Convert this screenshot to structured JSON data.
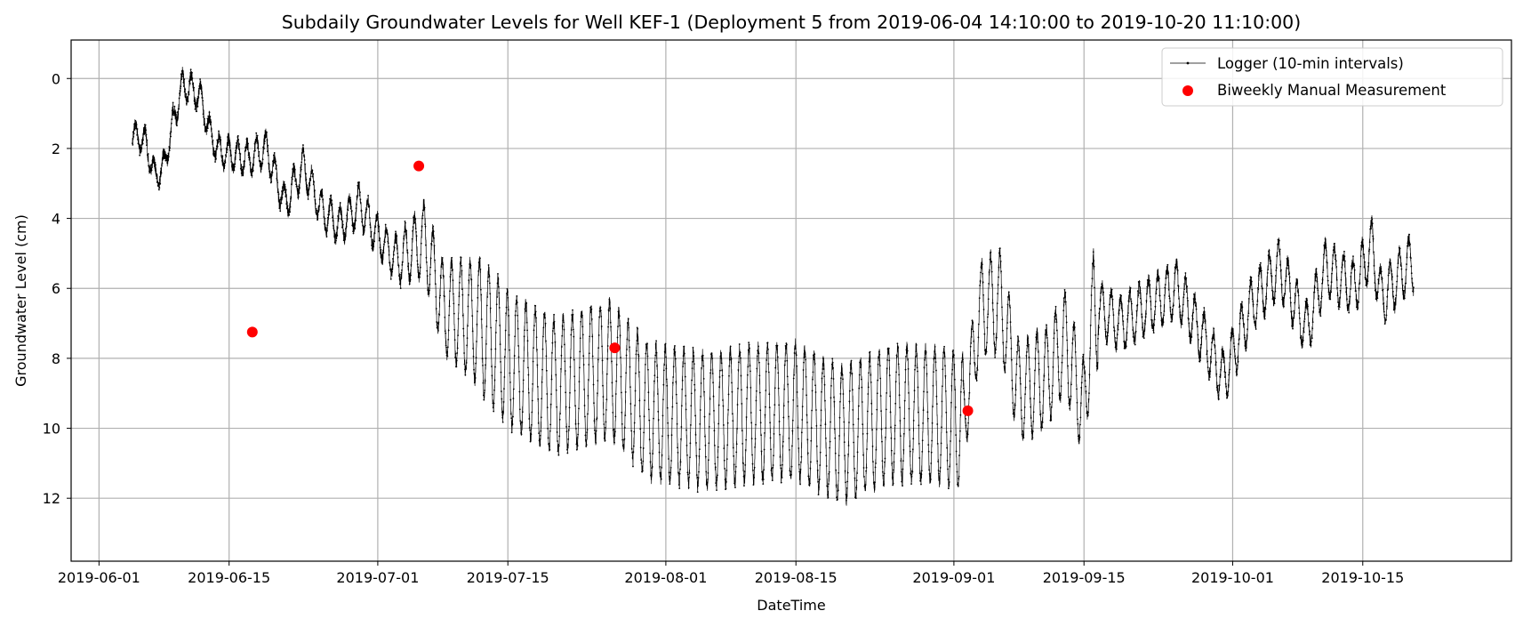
{
  "chart_data": {
    "type": "line",
    "title": "Subdaily Groundwater Levels for Well KEF-1 (Deployment 5 from 2019-06-04 14:10:00 to 2019-10-20 11:10:00)",
    "xlabel": "DateTime",
    "ylabel": "Groundwater Level (cm)",
    "x_ticks": [
      "2019-06-01",
      "2019-06-15",
      "2019-07-01",
      "2019-07-15",
      "2019-08-01",
      "2019-08-15",
      "2019-09-01",
      "2019-09-15",
      "2019-10-01",
      "2019-10-15"
    ],
    "y_ticks": [
      0,
      2,
      4,
      6,
      8,
      10,
      12
    ],
    "xlim": [
      "2019-05-29",
      "2019-10-31"
    ],
    "ylim": [
      13.8,
      -1.1
    ],
    "y_inverted": true,
    "grid": true,
    "legend_position": "top-right",
    "series": [
      {
        "name": "Logger (10-min intervals)",
        "style": "line-with-small-markers",
        "color": "#000000",
        "interval_minutes": 10,
        "start": "2019-06-04 14:10:00",
        "end": "2019-10-20 11:10:00",
        "trend": [
          [
            "2019-06-04",
            1.5
          ],
          [
            "2019-06-06",
            1.8
          ],
          [
            "2019-06-07",
            2.8
          ],
          [
            "2019-06-08",
            2.5
          ],
          [
            "2019-06-09",
            1.2
          ],
          [
            "2019-06-10",
            0.2
          ],
          [
            "2019-06-11",
            0.3
          ],
          [
            "2019-06-12",
            0.6
          ],
          [
            "2019-06-13",
            1.6
          ],
          [
            "2019-06-14",
            2.1
          ],
          [
            "2019-06-17",
            2.3
          ],
          [
            "2019-06-19",
            2.0
          ],
          [
            "2019-06-21",
            3.6
          ],
          [
            "2019-06-23",
            2.5
          ],
          [
            "2019-06-25",
            3.8
          ],
          [
            "2019-06-27",
            4.2
          ],
          [
            "2019-06-29",
            3.6
          ],
          [
            "2019-07-01",
            4.5
          ],
          [
            "2019-07-03",
            5.2
          ],
          [
            "2019-07-06",
            4.6
          ],
          [
            "2019-07-08",
            6.5
          ],
          [
            "2019-07-12",
            7.0
          ],
          [
            "2019-07-15",
            8.0
          ],
          [
            "2019-07-20",
            8.8
          ],
          [
            "2019-07-26",
            8.3
          ],
          [
            "2019-07-30",
            9.5
          ],
          [
            "2019-08-05",
            9.8
          ],
          [
            "2019-08-10",
            9.6
          ],
          [
            "2019-08-15",
            9.5
          ],
          [
            "2019-08-20",
            10.2
          ],
          [
            "2019-08-25",
            9.6
          ],
          [
            "2019-08-30",
            9.6
          ],
          [
            "2019-09-02",
            9.8
          ],
          [
            "2019-09-04",
            6.5
          ],
          [
            "2019-09-06",
            6.4
          ],
          [
            "2019-09-08",
            9.0
          ],
          [
            "2019-09-11",
            8.5
          ],
          [
            "2019-09-13",
            7.5
          ],
          [
            "2019-09-15",
            9.5
          ],
          [
            "2019-09-16",
            6.5
          ],
          [
            "2019-09-19",
            7.0
          ],
          [
            "2019-09-22",
            6.5
          ],
          [
            "2019-09-25",
            6.0
          ],
          [
            "2019-09-28",
            7.5
          ],
          [
            "2019-09-30",
            8.6
          ],
          [
            "2019-10-03",
            6.5
          ],
          [
            "2019-10-06",
            5.4
          ],
          [
            "2019-10-09",
            7.2
          ],
          [
            "2019-10-11",
            5.4
          ],
          [
            "2019-10-14",
            6.0
          ],
          [
            "2019-10-16",
            4.8
          ],
          [
            "2019-10-17",
            6.3
          ],
          [
            "2019-10-20",
            5.3
          ]
        ]
      },
      {
        "name": "Biweekly Manual Measurement",
        "style": "scatter",
        "color": "#ff0000",
        "points": [
          [
            "2019-06-17 12:00",
            7.25
          ],
          [
            "2019-07-05 10:00",
            2.5
          ],
          [
            "2019-07-26 12:00",
            7.7
          ],
          [
            "2019-09-02 12:00",
            9.5
          ]
        ]
      }
    ]
  }
}
